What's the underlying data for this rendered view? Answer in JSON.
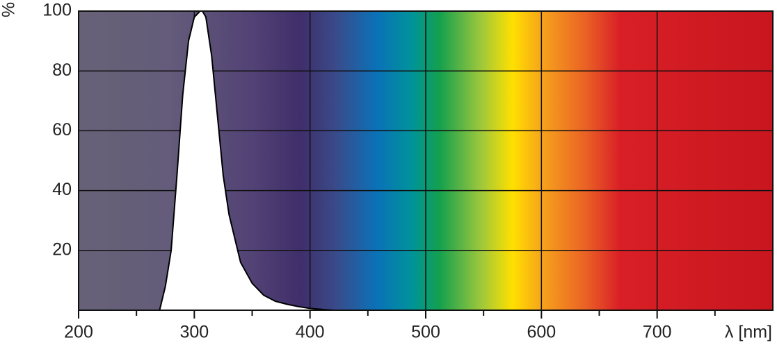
{
  "chart_data": {
    "type": "area",
    "y_label": "%",
    "x_label": "λ [nm]",
    "x": [
      270,
      275,
      280,
      285,
      290,
      295,
      300,
      305,
      307,
      310,
      315,
      320,
      325,
      330,
      340,
      350,
      360,
      370,
      380,
      390,
      400,
      410,
      420
    ],
    "values": [
      0,
      8,
      20,
      45,
      72,
      90,
      98,
      100,
      100,
      98,
      85,
      65,
      45,
      32,
      16,
      9,
      5,
      3,
      2,
      1.2,
      0.6,
      0.3,
      0
    ],
    "color": "#ffffff",
    "line_color": "#000000",
    "xlim": [
      200,
      800
    ],
    "ylim": [
      0,
      100
    ],
    "xticks": [
      200,
      300,
      400,
      500,
      600,
      700
    ],
    "xminorticks": [
      250,
      350,
      450,
      550,
      650,
      750
    ],
    "yticks": [
      20,
      40,
      60,
      80,
      100
    ],
    "grid": true
  }
}
